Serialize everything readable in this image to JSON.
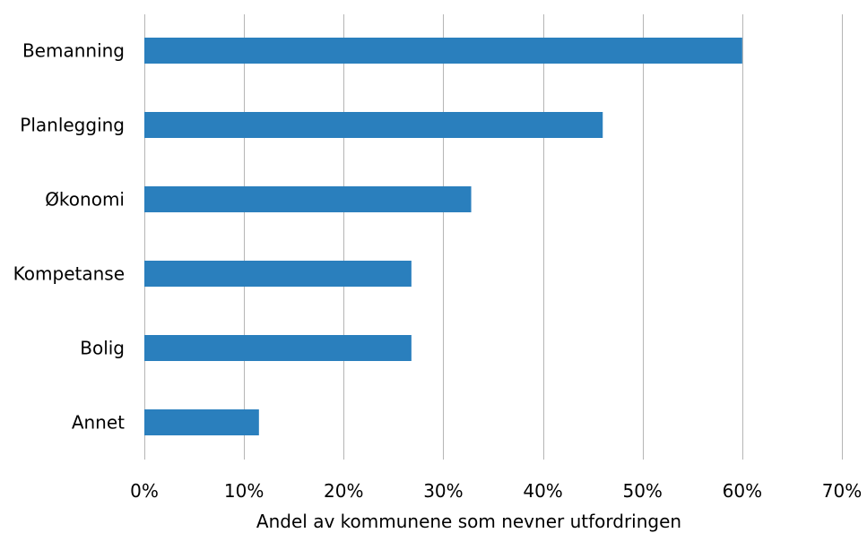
{
  "chart_data": {
    "type": "bar",
    "orientation": "horizontal",
    "categories": [
      "Bemanning",
      "Planlegging",
      "Økonomi",
      "Kompetanse",
      "Bolig",
      "Annet"
    ],
    "values": [
      60,
      46,
      32.8,
      26.8,
      26.8,
      11.5
    ],
    "title": "",
    "xlabel": "Andel av kommunene som nevner utfordringen",
    "ylabel": "",
    "xlim": [
      0,
      70
    ],
    "xticks": [
      0,
      10,
      20,
      30,
      40,
      50,
      60,
      70
    ],
    "xtick_labels": [
      "0%",
      "10%",
      "20%",
      "30%",
      "40%",
      "50%",
      "60%",
      "70%"
    ],
    "grid": "vertical",
    "legend": "none",
    "bar_color": "#2a7fbd"
  }
}
